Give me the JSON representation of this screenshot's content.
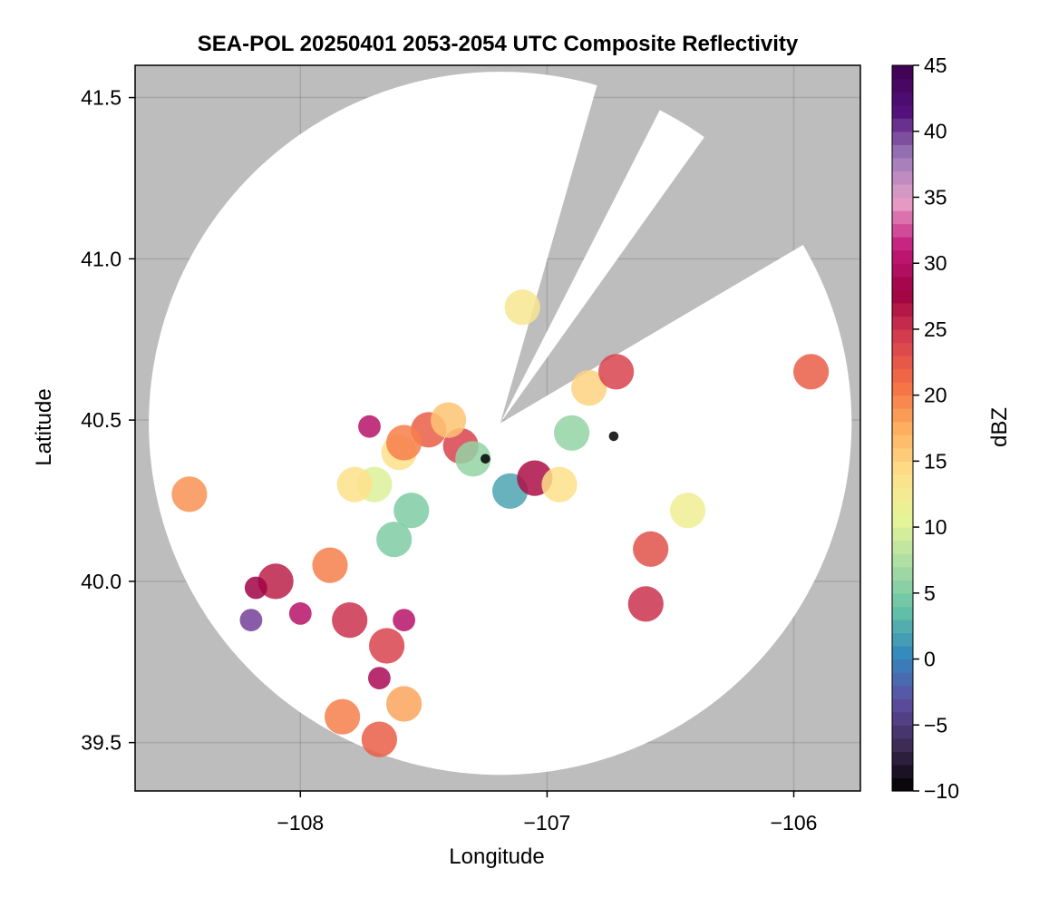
{
  "chart_data": {
    "type": "heatmap",
    "title": "SEA-POL 20250401 2053-2054 UTC Composite Reflectivity",
    "xlabel": "Longitude",
    "ylabel": "Latitude",
    "xlim": [
      -108.67,
      -105.73
    ],
    "ylim": [
      39.35,
      41.6
    ],
    "x_ticks": [
      -108,
      -107,
      -106
    ],
    "x_tick_labels": [
      "−108",
      "−107",
      "−106"
    ],
    "y_ticks": [
      39.5,
      40.0,
      40.5,
      41.0,
      41.5
    ],
    "y_tick_labels": [
      "39.5",
      "40.0",
      "40.5",
      "41.0",
      "41.5"
    ],
    "grid": true,
    "background_color": "#bdbdbd",
    "radar": {
      "center_lon": -107.19,
      "center_lat": 40.49,
      "range_lat_deg": 1.09,
      "blocked_sectors_deg_from_north": [
        [
          16.5,
          26.5
        ],
        [
          36.0,
          59.0
        ]
      ]
    },
    "colorbar": {
      "label": "dBZ",
      "min": -10,
      "max": 45,
      "ticks": [
        -10,
        -5,
        0,
        5,
        10,
        15,
        20,
        25,
        30,
        35,
        40,
        45
      ],
      "tick_labels": [
        "−10",
        "−5",
        "0",
        "5",
        "10",
        "15",
        "20",
        "25",
        "30",
        "35",
        "40",
        "45"
      ],
      "colormap": "Spectral_r",
      "colors": [
        "#000000",
        "#3d2a55",
        "#5e4fa2",
        "#3288bd",
        "#66c2a5",
        "#abdda4",
        "#e6f598",
        "#fee08b",
        "#fdae61",
        "#f46d43",
        "#d53e4f",
        "#9e0142",
        "#c51b7d",
        "#e7a0c8",
        "#9b79b8",
        "#52107a",
        "#3f0050"
      ],
      "levels": 55
    },
    "echo_cells": [
      {
        "lon": -107.6,
        "lat": 40.4,
        "dbz": 14
      },
      {
        "lon": -107.35,
        "lat": 40.42,
        "dbz": 24
      },
      {
        "lon": -107.48,
        "lat": 40.47,
        "dbz": 22
      },
      {
        "lon": -107.72,
        "lat": 40.48,
        "dbz": 30
      },
      {
        "lon": -107.58,
        "lat": 40.43,
        "dbz": 20
      },
      {
        "lon": -107.3,
        "lat": 40.38,
        "dbz": 6
      },
      {
        "lon": -107.25,
        "lat": 40.38,
        "dbz": -10
      },
      {
        "lon": -107.15,
        "lat": 40.28,
        "dbz": 2
      },
      {
        "lon": -107.05,
        "lat": 40.32,
        "dbz": 27
      },
      {
        "lon": -106.95,
        "lat": 40.3,
        "dbz": 14
      },
      {
        "lon": -106.9,
        "lat": 40.46,
        "dbz": 6
      },
      {
        "lon": -106.73,
        "lat": 40.45,
        "dbz": -10
      },
      {
        "lon": -106.83,
        "lat": 40.6,
        "dbz": 15
      },
      {
        "lon": -106.72,
        "lat": 40.65,
        "dbz": 24
      },
      {
        "lon": -107.55,
        "lat": 40.22,
        "dbz": 5
      },
      {
        "lon": -107.62,
        "lat": 40.13,
        "dbz": 5
      },
      {
        "lon": -107.7,
        "lat": 40.3,
        "dbz": 10
      },
      {
        "lon": -108.1,
        "lat": 40.0,
        "dbz": 26
      },
      {
        "lon": -108.18,
        "lat": 39.98,
        "dbz": 28
      },
      {
        "lon": -108.2,
        "lat": 39.88,
        "dbz": 40
      },
      {
        "lon": -108.0,
        "lat": 39.9,
        "dbz": 30
      },
      {
        "lon": -107.88,
        "lat": 40.05,
        "dbz": 20
      },
      {
        "lon": -107.8,
        "lat": 39.88,
        "dbz": 25
      },
      {
        "lon": -107.65,
        "lat": 39.8,
        "dbz": 24
      },
      {
        "lon": -107.58,
        "lat": 39.88,
        "dbz": 30
      },
      {
        "lon": -107.68,
        "lat": 39.7,
        "dbz": 29
      },
      {
        "lon": -108.45,
        "lat": 40.27,
        "dbz": 19
      },
      {
        "lon": -107.1,
        "lat": 40.85,
        "dbz": 13
      },
      {
        "lon": -107.4,
        "lat": 40.5,
        "dbz": 16
      },
      {
        "lon": -107.78,
        "lat": 40.3,
        "dbz": 14
      },
      {
        "lon": -106.58,
        "lat": 40.1,
        "dbz": 23
      },
      {
        "lon": -106.6,
        "lat": 39.93,
        "dbz": 25
      },
      {
        "lon": -106.43,
        "lat": 40.22,
        "dbz": 12
      },
      {
        "lon": -107.83,
        "lat": 39.58,
        "dbz": 20
      },
      {
        "lon": -107.58,
        "lat": 39.62,
        "dbz": 18
      },
      {
        "lon": -107.68,
        "lat": 39.51,
        "dbz": 22
      },
      {
        "lon": -105.93,
        "lat": 40.65,
        "dbz": 22
      }
    ]
  }
}
